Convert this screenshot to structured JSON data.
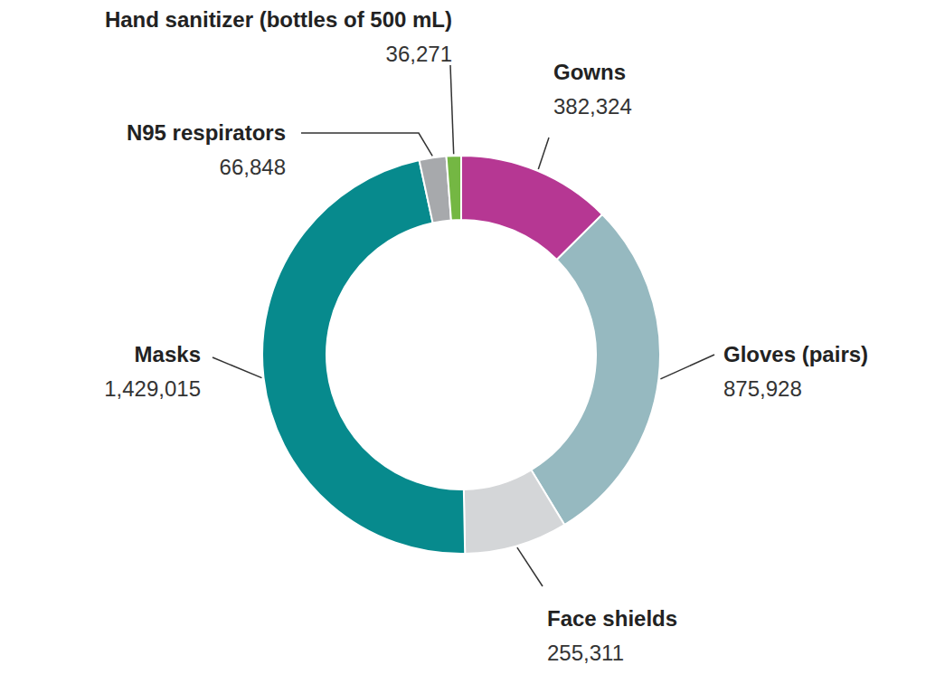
{
  "chart_data": {
    "type": "donut",
    "categories": [
      "Gowns",
      "Gloves (pairs)",
      "Face shields",
      "Masks",
      "N95 respirators",
      "Hand sanitizer (bottles of 500 mL)"
    ],
    "values": [
      382324,
      875928,
      255311,
      1429015,
      66848,
      36271
    ],
    "value_labels": [
      "382,324",
      "875,928",
      "255,311",
      "1,429,015",
      "66,848",
      "36,271"
    ],
    "colors": [
      "#b63793",
      "#96b9c0",
      "#d4d6d8",
      "#078a8d",
      "#a7a9ac",
      "#74b743"
    ],
    "data_labels": true
  }
}
